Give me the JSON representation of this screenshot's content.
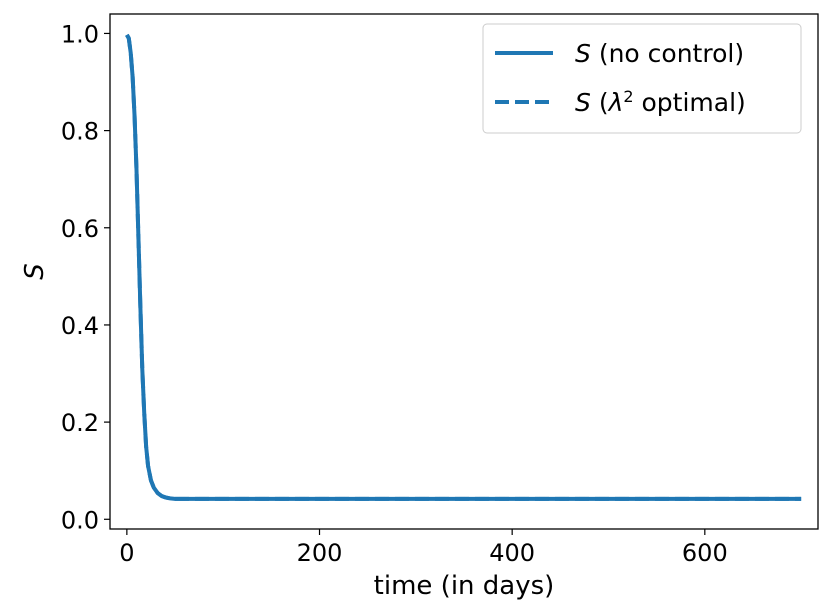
{
  "chart_data": {
    "type": "line",
    "title": "",
    "xlabel": "time (in days)",
    "ylabel": "S",
    "xlim": [
      -17.5,
      717.5
    ],
    "ylim": [
      -0.02,
      1.04
    ],
    "xticks": [
      0,
      200,
      400,
      600
    ],
    "xtick_labels": [
      "0",
      "200",
      "400",
      "600"
    ],
    "yticks": [
      0.0,
      0.2,
      0.4,
      0.6,
      0.8,
      1.0
    ],
    "ytick_labels": [
      "0.0",
      "0.2",
      "0.4",
      "0.6",
      "0.8",
      "1.0"
    ],
    "grid": false,
    "legend_position": "top-right",
    "series": [
      {
        "name": "S (no control)",
        "legend_italic": "S",
        "legend_rest": " (no control)",
        "style": "solid",
        "color": "#1f77b4",
        "x": [
          0,
          2,
          4,
          6,
          8,
          10,
          12,
          14,
          16,
          18,
          20,
          22,
          25,
          28,
          32,
          36,
          40,
          45,
          50,
          60,
          80,
          100,
          200,
          300,
          400,
          500,
          600,
          700
        ],
        "y": [
          0.997,
          0.99,
          0.96,
          0.91,
          0.83,
          0.72,
          0.58,
          0.44,
          0.31,
          0.22,
          0.15,
          0.11,
          0.08,
          0.065,
          0.054,
          0.048,
          0.045,
          0.043,
          0.042,
          0.042,
          0.042,
          0.042,
          0.042,
          0.042,
          0.042,
          0.042,
          0.042,
          0.042
        ]
      },
      {
        "name": "S (λ2 optimal)",
        "legend_italic": "S",
        "legend_pre": " (",
        "legend_lambda": "λ",
        "legend_sup": "2",
        "legend_post": " optimal)",
        "style": "dashed",
        "color": "#1f77b4",
        "x": [
          0,
          2,
          4,
          6,
          8,
          10,
          12,
          14,
          16,
          18,
          20,
          22,
          25,
          28,
          32,
          36,
          40,
          45,
          50,
          60,
          80,
          100,
          200,
          300,
          400,
          500,
          600,
          700
        ],
        "y": [
          0.997,
          0.99,
          0.96,
          0.91,
          0.83,
          0.72,
          0.58,
          0.44,
          0.31,
          0.22,
          0.15,
          0.11,
          0.08,
          0.065,
          0.054,
          0.048,
          0.045,
          0.043,
          0.042,
          0.042,
          0.042,
          0.042,
          0.042,
          0.042,
          0.042,
          0.042,
          0.042,
          0.042
        ]
      }
    ]
  }
}
